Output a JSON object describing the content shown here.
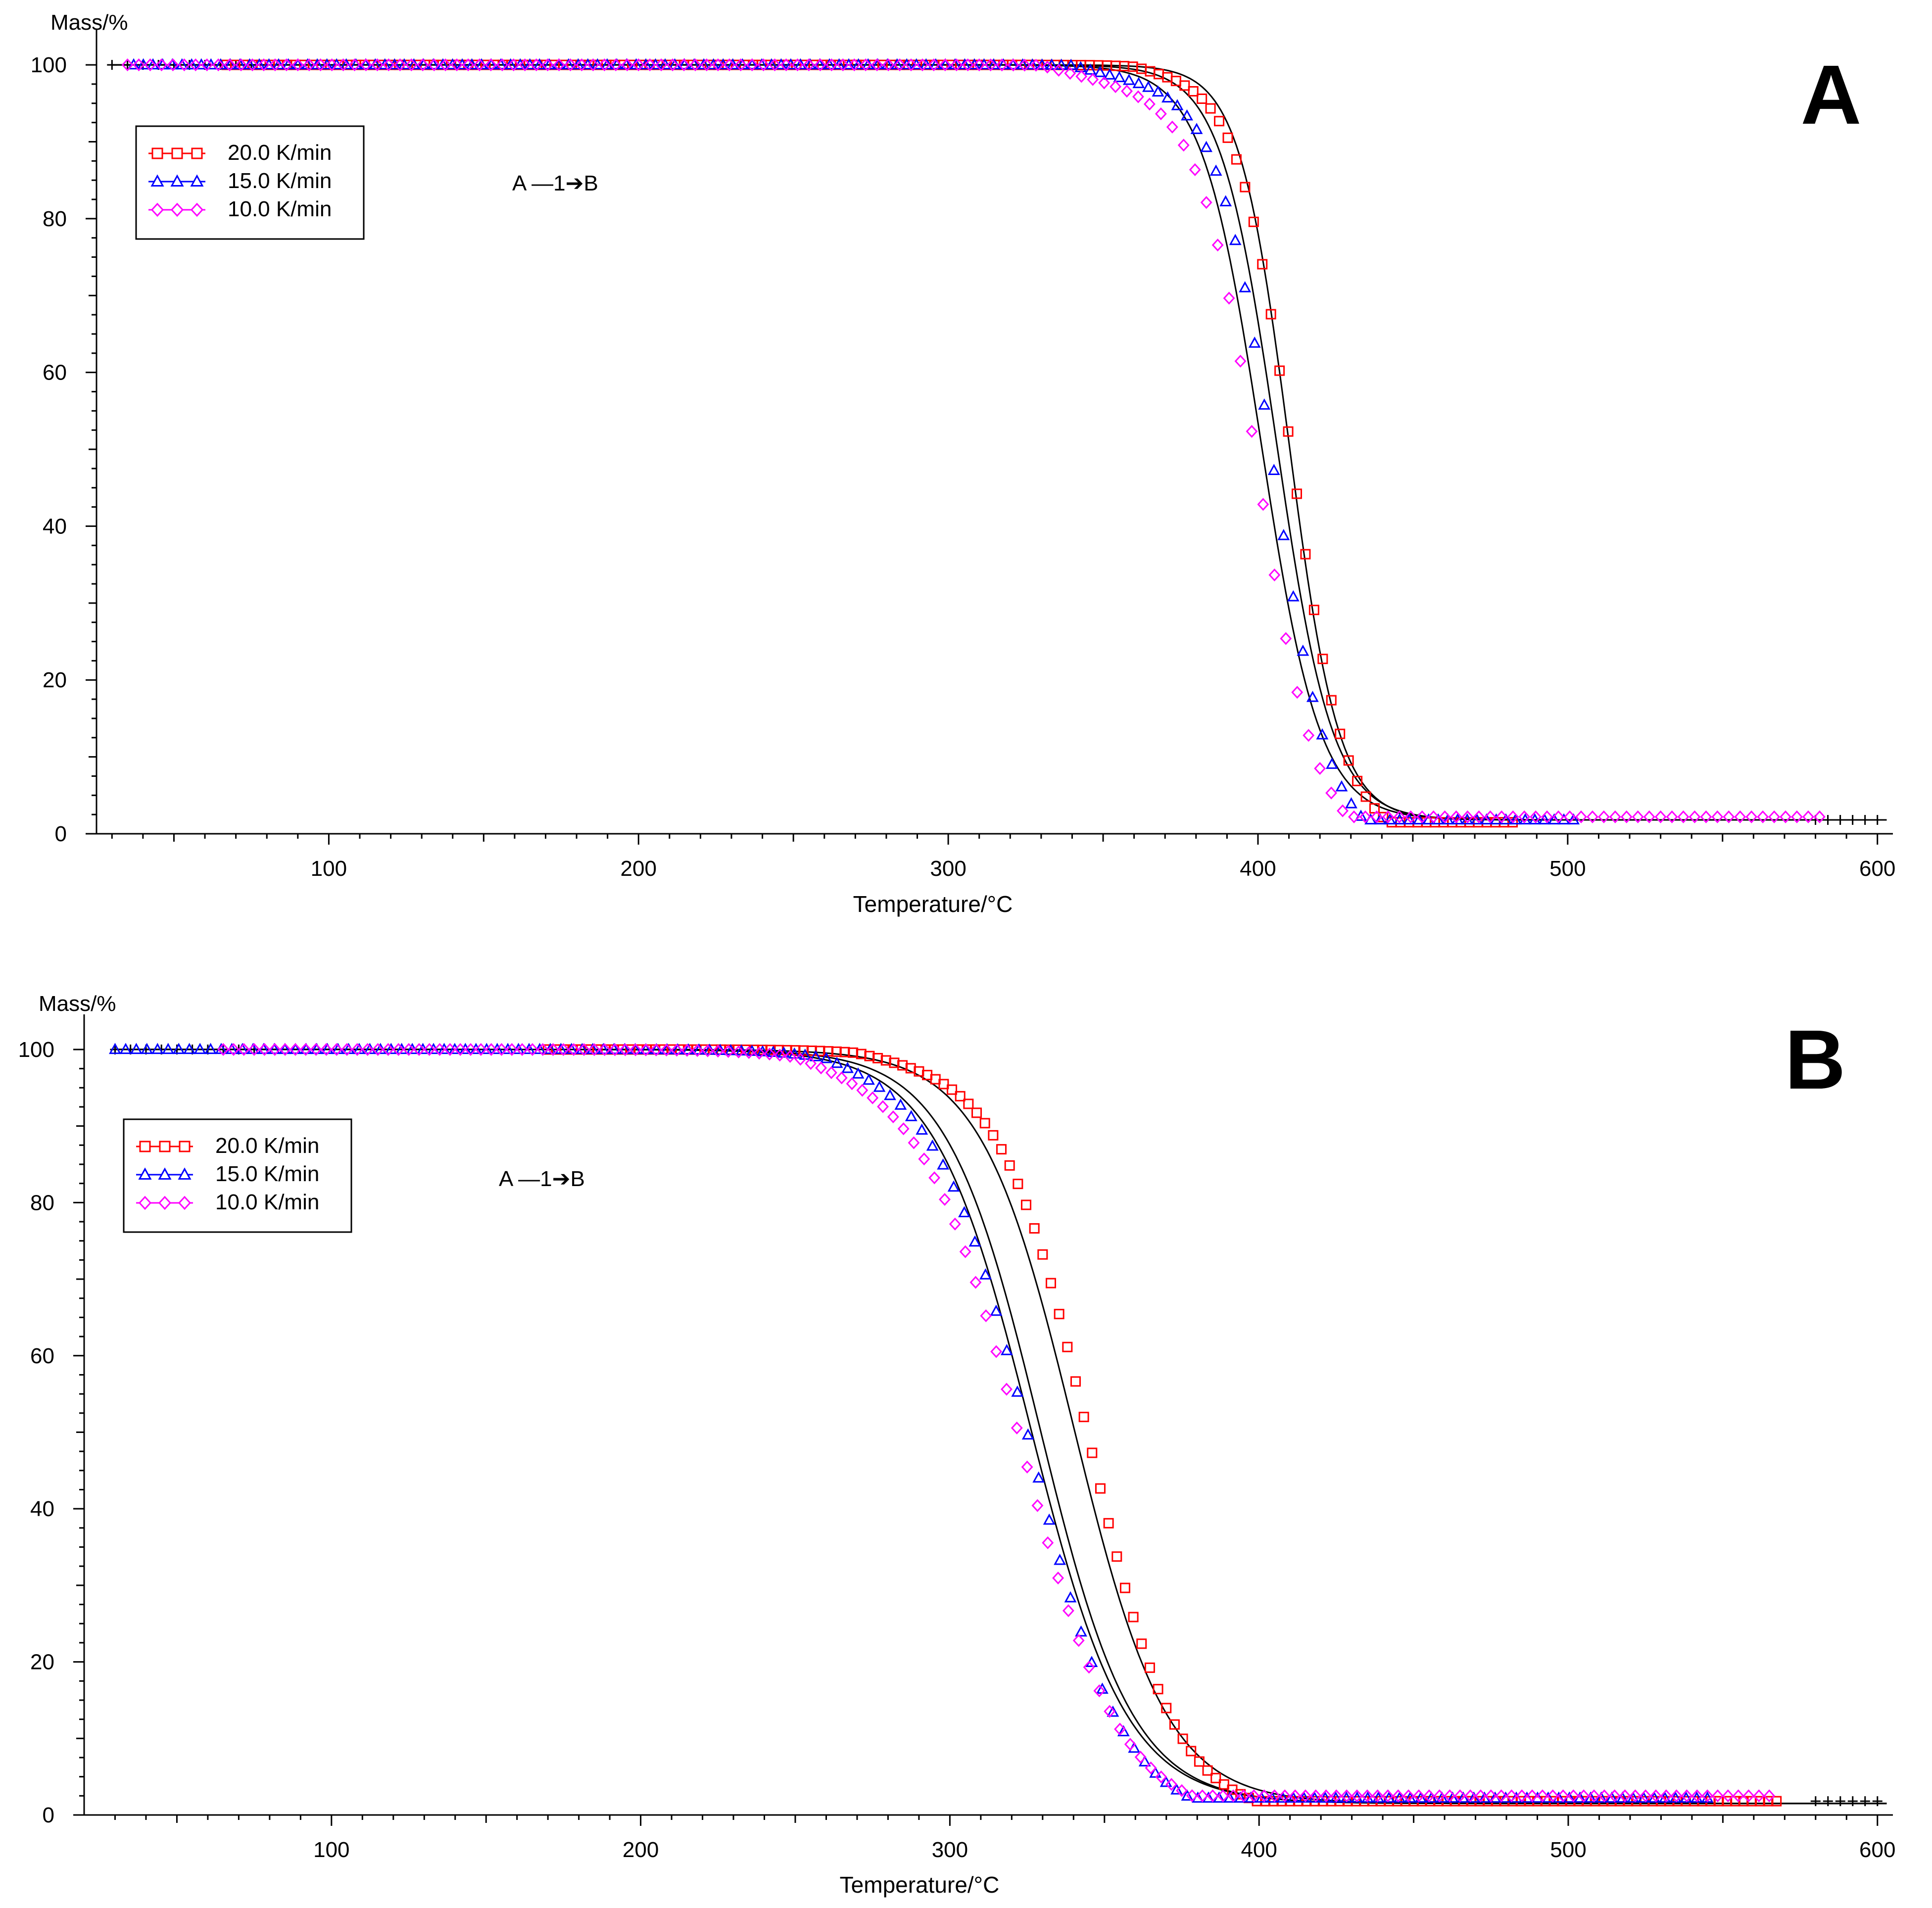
{
  "colors": {
    "s20": "#ff0000",
    "s15": "#0000ff",
    "s10": "#ff00ff",
    "fit": "#000000"
  },
  "chart_data": [
    {
      "type": "scatter",
      "panel_label": "A",
      "ylabel": "Mass/%",
      "xlabel": "Temperature/°C",
      "xlim": [
        25,
        605
      ],
      "ylim": [
        0,
        102
      ],
      "xticks": [
        100,
        200,
        300,
        400,
        500,
        600
      ],
      "yticks": [
        0,
        20,
        40,
        60,
        80,
        100
      ],
      "xtick_labels": [
        "100",
        "200",
        "300",
        "400",
        "500",
        "600"
      ],
      "ytick_labels": [
        "0",
        "20",
        "40",
        "60",
        "80",
        "100"
      ],
      "annotation": "A —1➔B",
      "legend": [
        "20.0 K/min",
        "15.0 K/min",
        "10.0 K/min"
      ],
      "series": [
        {
          "name": "20.0 K/min",
          "marker": "square",
          "x_start": 67,
          "x_end": 485,
          "T_half": 411,
          "width": 8.5,
          "residual": 1.5,
          "onset": 360,
          "onset_amp": 2.5,
          "onset_scale": 30
        },
        {
          "name": "15.0 K/min",
          "marker": "triangle",
          "x_start": 37,
          "x_end": 505,
          "T_half": 405,
          "width": 9,
          "residual": 1.8,
          "onset": 340,
          "onset_amp": 4,
          "onset_scale": 40
        },
        {
          "name": "10.0 K/min",
          "marker": "diamond",
          "x_start": 35,
          "x_end": 585,
          "T_half": 400,
          "width": 9.5,
          "residual": 2.2,
          "onset": 330,
          "onset_amp": 5,
          "onset_scale": 45
        }
      ],
      "fits": [
        {
          "T_half": 410,
          "width": 8,
          "residual": 1.8
        },
        {
          "T_half": 406,
          "width": 9,
          "residual": 1.8
        },
        {
          "T_half": 401,
          "width": 9.5,
          "residual": 1.8
        }
      ]
    },
    {
      "type": "scatter",
      "panel_label": "B",
      "ylabel": "Mass/%",
      "xlabel": "Temperature/°C",
      "xlim": [
        20,
        605
      ],
      "ylim": [
        0,
        102
      ],
      "xticks": [
        100,
        200,
        300,
        400,
        500,
        600
      ],
      "yticks": [
        0,
        20,
        40,
        60,
        80,
        100
      ],
      "xtick_labels": [
        "100",
        "200",
        "300",
        "400",
        "500",
        "600"
      ],
      "ytick_labels": [
        "0",
        "20",
        "40",
        "60",
        "80",
        "100"
      ],
      "annotation": "A —1➔B",
      "legend": [
        "20.0 K/min",
        "15.0 K/min",
        "10.0 K/min"
      ],
      "series": [
        {
          "name": "20.0 K/min",
          "marker": "square",
          "x_start": 170,
          "x_end": 570,
          "T_half": 345,
          "width": 14,
          "residual": 1.8,
          "onset": 270,
          "onset_amp": 2,
          "onset_scale": 30
        },
        {
          "name": "15.0 K/min",
          "marker": "triangle",
          "x_start": 30,
          "x_end": 545,
          "T_half": 326,
          "width": 15,
          "residual": 2.2,
          "onset": 260,
          "onset_amp": 3,
          "onset_scale": 30
        },
        {
          "name": "10.0 K/min",
          "marker": "diamond",
          "x_start": 65,
          "x_end": 565,
          "T_half": 323,
          "width": 16,
          "residual": 2.5,
          "onset": 250,
          "onset_amp": 3,
          "onset_scale": 30
        }
      ],
      "fits": [
        {
          "T_half": 340,
          "width": 15,
          "residual": 1.5
        },
        {
          "T_half": 329,
          "width": 15,
          "residual": 1.5
        },
        {
          "T_half": 326,
          "width": 15.5,
          "residual": 1.5
        }
      ]
    }
  ]
}
